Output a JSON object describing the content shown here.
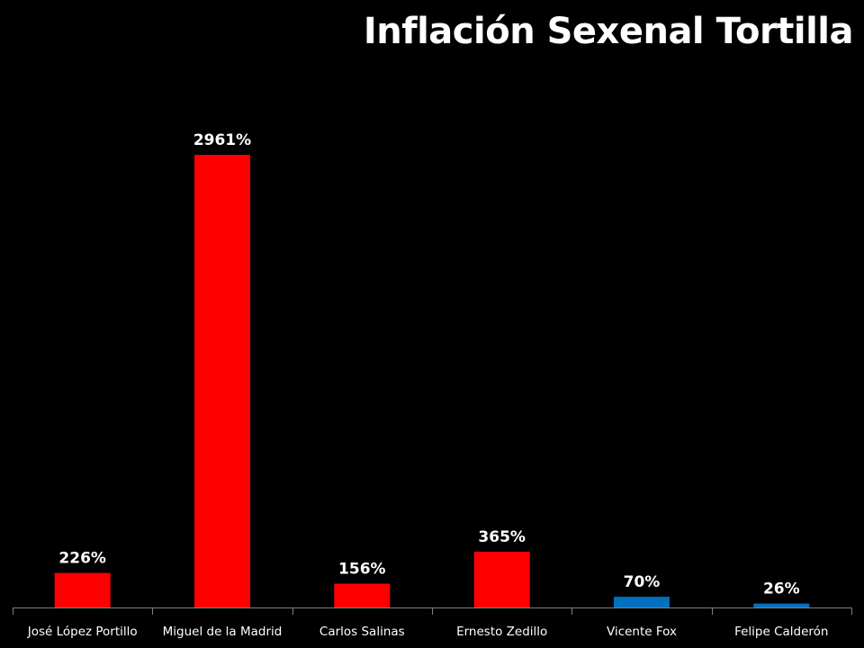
{
  "chart_data": {
    "type": "bar",
    "title": "Inflación Sexenal Tortilla",
    "xlabel": "",
    "ylabel": "",
    "categories": [
      "José López Portillo",
      "Miguel de la Madrid",
      "Carlos Salinas",
      "Ernesto Zedillo",
      "Vicente Fox",
      "Felipe Calderón"
    ],
    "values": [
      226,
      2961,
      156,
      365,
      70,
      26
    ],
    "data_labels": [
      "226%",
      "2961%",
      "156%",
      "365%",
      "70%",
      "26%"
    ],
    "colors": [
      "#ff0000",
      "#ff0000",
      "#ff0000",
      "#ff0000",
      "#0070c0",
      "#0070c0"
    ],
    "ylim": [
      0,
      3000
    ],
    "grid": false,
    "legend": "none",
    "y_axis_visible": false
  },
  "colors": {
    "background": "#000000",
    "axis": "#7f7f7f",
    "text": "#ffffff"
  }
}
